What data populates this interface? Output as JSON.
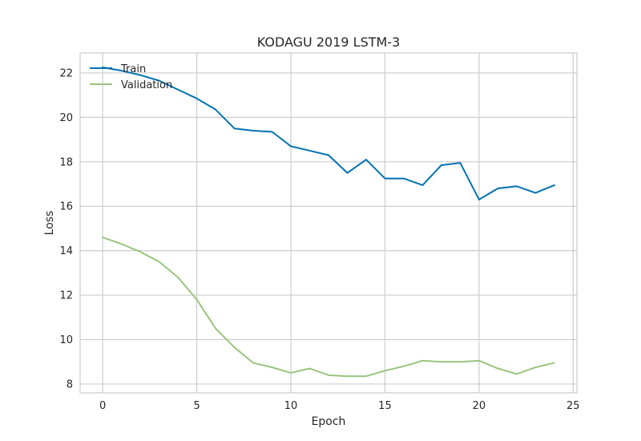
{
  "chart_data": {
    "type": "line",
    "title": "KODAGU 2019 LSTM-3",
    "xlabel": "Epoch",
    "ylabel": "Loss",
    "xlim": [
      -1.2,
      25.2
    ],
    "ylim": [
      7.6,
      22.9
    ],
    "xticks": [
      0,
      5,
      10,
      15,
      20,
      25
    ],
    "yticks": [
      8,
      10,
      12,
      14,
      16,
      18,
      20,
      22
    ],
    "grid": true,
    "legend": "top-left",
    "x": [
      0,
      1,
      2,
      3,
      4,
      5,
      6,
      7,
      8,
      9,
      10,
      11,
      12,
      13,
      14,
      15,
      16,
      17,
      18,
      19,
      20,
      21,
      22,
      23,
      24
    ],
    "series": [
      {
        "name": "Train",
        "color": "#0072B2",
        "values": [
          22.25,
          22.1,
          21.9,
          21.65,
          21.25,
          20.85,
          20.35,
          19.5,
          19.4,
          19.35,
          18.7,
          18.5,
          18.3,
          17.5,
          18.1,
          17.25,
          17.25,
          16.95,
          17.85,
          17.95,
          16.3,
          16.8,
          16.9,
          16.6,
          16.95
        ]
      },
      {
        "name": "Validation",
        "color": "#9AC47F",
        "values": [
          14.6,
          14.3,
          13.95,
          13.5,
          12.8,
          11.8,
          10.5,
          9.65,
          8.95,
          8.75,
          8.5,
          8.7,
          8.4,
          8.35,
          8.35,
          8.6,
          8.8,
          9.05,
          9.0,
          9.0,
          9.05,
          8.7,
          8.45,
          8.75,
          8.95
        ]
      }
    ]
  }
}
